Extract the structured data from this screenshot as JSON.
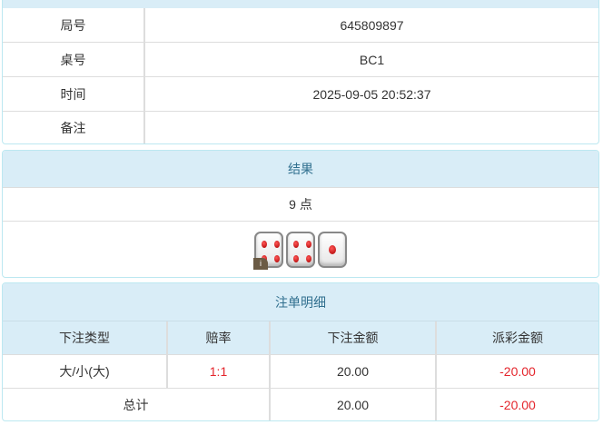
{
  "info": {
    "rows": [
      {
        "label": "局号",
        "value": "645809897"
      },
      {
        "label": "桌号",
        "value": "BC1"
      },
      {
        "label": "时间",
        "value": "2025-09-05 20:52:37"
      },
      {
        "label": "备注",
        "value": ""
      }
    ]
  },
  "result": {
    "title": "结果",
    "points": "9 点",
    "dice": [
      4,
      4,
      1
    ],
    "info_badge": "i"
  },
  "bets": {
    "title": "注单明细",
    "headers": [
      "下注类型",
      "赔率",
      "下注金额",
      "派彩金额"
    ],
    "rows": [
      {
        "type": "大/小(大)",
        "odds": "1:1",
        "amount": "20.00",
        "payout": "-20.00"
      }
    ],
    "total": {
      "label": "总计",
      "amount": "20.00",
      "payout": "-20.00"
    }
  },
  "colors": {
    "header_bg": "#d9edf7",
    "header_text": "#31708f",
    "negative": "#e4252c"
  }
}
